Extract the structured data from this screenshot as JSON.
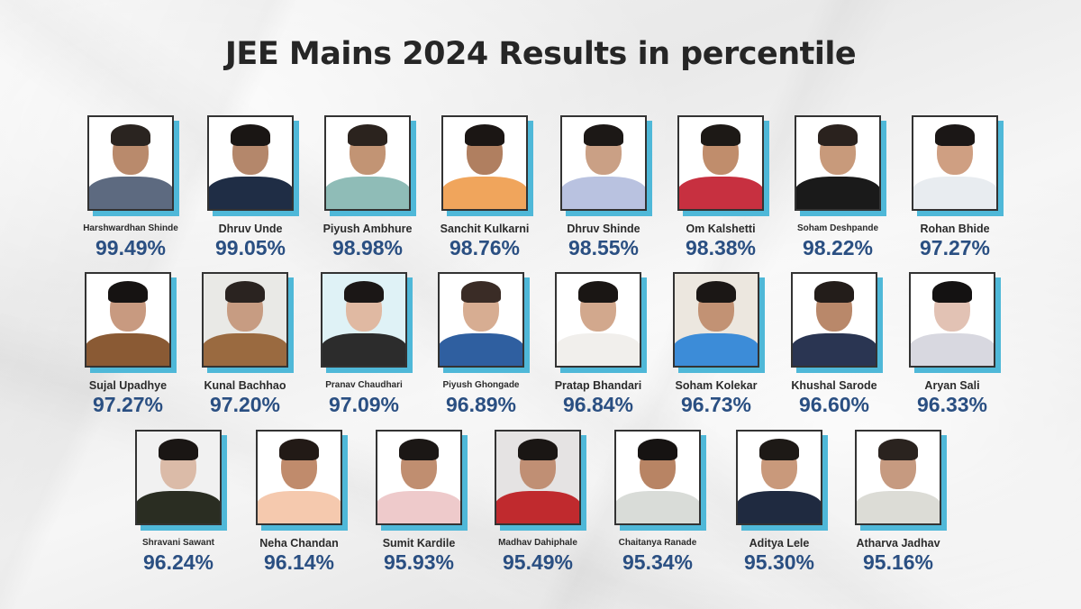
{
  "title": "JEE Mains 2024 Results in percentile",
  "colors": {
    "title": "#262626",
    "name": "#2b2b2b",
    "percentile": "#2a4f82",
    "frame_border": "#333333",
    "frame_shadow": "#4fb8d8"
  },
  "rows": [
    {
      "students": [
        {
          "name": "Harshwardhan Shinde",
          "percentile": "99.49%",
          "outfit": "#5d6a80",
          "bg": "#ffffff",
          "hair": "#2a2420",
          "skin": "#b98a6c",
          "small": true
        },
        {
          "name": "Dhruv Unde",
          "percentile": "99.05%",
          "outfit": "#1f2d45",
          "bg": "#ffffff",
          "hair": "#1a1614",
          "skin": "#b4876b"
        },
        {
          "name": "Piyush Ambhure",
          "percentile": "98.98%",
          "outfit": "#8fbcb7",
          "bg": "#ffffff",
          "hair": "#2b231e",
          "skin": "#c29474"
        },
        {
          "name": "Sanchit Kulkarni",
          "percentile": "98.76%",
          "outfit": "#f0a55c",
          "bg": "#ffffff",
          "hair": "#1b1614",
          "skin": "#b07f60"
        },
        {
          "name": "Dhruv Shinde",
          "percentile": "98.55%",
          "outfit": "#b9c2e0",
          "bg": "#ffffff",
          "hair": "#1c1816",
          "skin": "#caa085"
        },
        {
          "name": "Om Kalshetti",
          "percentile": "98.38%",
          "outfit": "#c73040",
          "bg": "#ffffff",
          "hair": "#1d1916",
          "skin": "#c08d6c"
        },
        {
          "name": "Soham Deshpande",
          "percentile": "98.22%",
          "outfit": "#1a1a1a",
          "bg": "#ffffff",
          "hair": "#2a221e",
          "skin": "#c89a7b",
          "small": true
        },
        {
          "name": "Rohan Bhide",
          "percentile": "97.27%",
          "outfit": "#e8ecf0",
          "bg": "#ffffff",
          "hair": "#1b1716",
          "skin": "#cf9f82"
        }
      ]
    },
    {
      "students": [
        {
          "name": "Sujal Upadhye",
          "percentile": "97.27%",
          "outfit": "#8a5a34",
          "bg": "#ffffff",
          "hair": "#161312",
          "skin": "#c89a80"
        },
        {
          "name": "Kunal Bachhao",
          "percentile": "97.20%",
          "outfit": "#9a6a40",
          "bg": "#e9e9e6",
          "hair": "#2a2320",
          "skin": "#c79c82"
        },
        {
          "name": "Pranav Chaudhari",
          "percentile": "97.09%",
          "outfit": "#2c2c2c",
          "bg": "#dff2f6",
          "hair": "#1b1716",
          "skin": "#e0b9a2",
          "small": true
        },
        {
          "name": "Piyush Ghongade",
          "percentile": "96.89%",
          "outfit": "#2f5fa0",
          "bg": "#ffffff",
          "hair": "#3a2c26",
          "skin": "#d7ad92",
          "small": true
        },
        {
          "name": "Pratap Bhandari",
          "percentile": "96.84%",
          "outfit": "#f1efec",
          "bg": "#ffffff",
          "hair": "#1a1614",
          "skin": "#d2a88d"
        },
        {
          "name": "Soham Kolekar",
          "percentile": "96.73%",
          "outfit": "#3c8cd8",
          "bg": "#ece7df",
          "hair": "#1b1715",
          "skin": "#c29274"
        },
        {
          "name": "Khushal Sarode",
          "percentile": "96.60%",
          "outfit": "#2a3552",
          "bg": "#ffffff",
          "hair": "#231d1a",
          "skin": "#b9886a"
        },
        {
          "name": "Aryan Sali",
          "percentile": "96.33%",
          "outfit": "#d8d8e0",
          "bg": "#ffffff",
          "hair": "#141212",
          "skin": "#e2c2b4"
        }
      ]
    },
    {
      "students": [
        {
          "name": "Shravani Sawant",
          "percentile": "96.24%",
          "outfit": "#2a2d22",
          "bg": "#f1f1f1",
          "hair": "#1a1614",
          "skin": "#dbbba8",
          "small": true
        },
        {
          "name": "Neha Chandan",
          "percentile": "96.14%",
          "outfit": "#f5c9ae",
          "bg": "#ffffff",
          "hair": "#221a16",
          "skin": "#c08b6c"
        },
        {
          "name": "Sumit Kardile",
          "percentile": "95.93%",
          "outfit": "#eecacb",
          "bg": "#ffffff",
          "hair": "#1b1715",
          "skin": "#c08e70"
        },
        {
          "name": "Madhav Dahiphale",
          "percentile": "95.49%",
          "outfit": "#c02a2e",
          "bg": "#e5e3e3",
          "hair": "#1a1614",
          "skin": "#c08f74",
          "small": true
        },
        {
          "name": "Chaitanya Ranade",
          "percentile": "95.34%",
          "outfit": "#d9dcd8",
          "bg": "#ffffff",
          "hair": "#161312",
          "skin": "#b88464",
          "small": true
        },
        {
          "name": "Aditya  Lele",
          "percentile": "95.30%",
          "outfit": "#1f2a40",
          "bg": "#ffffff",
          "hair": "#1d1916",
          "skin": "#c9997b"
        },
        {
          "name": "Atharva Jadhav",
          "percentile": "95.16%",
          "outfit": "#dcdcd6",
          "bg": "#ffffff",
          "hair": "#2a231f",
          "skin": "#c69a80"
        }
      ]
    }
  ]
}
